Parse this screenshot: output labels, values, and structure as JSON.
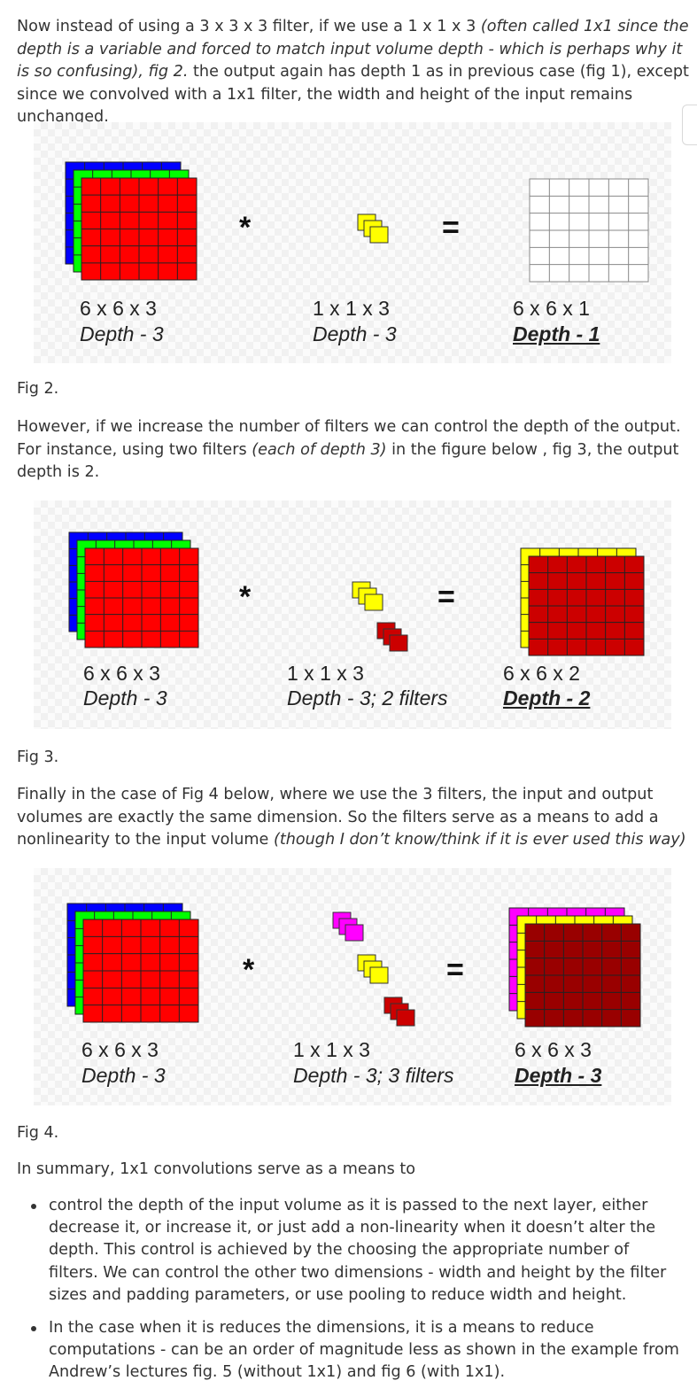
{
  "para1": {
    "segments": [
      {
        "text": "Now instead of using a 3 x 3 x 3 filter, if we use a 1 x 1 x 3 ",
        "italic": false
      },
      {
        "text": "(often called 1x1 since the depth is a variable and forced to match input volume depth - which is perhaps why it is so confusing), fig 2.",
        "italic": true
      },
      {
        "text": " the output again has depth 1 as in previous case (fig 1), except since we convolved with a 1x1 filter, the width and height of the input remains unchanged.",
        "italic": false
      }
    ]
  },
  "fig2": {
    "input_dims": "6 x 6 x 3",
    "input_depth": "Depth - 3",
    "filter_dims": "1 x 1 x 3",
    "filter_depth": "Depth - 3",
    "output_dims": "6 x 6 x 1",
    "output_depth": "Depth - 1",
    "op_conv": "*",
    "op_eq": "=",
    "caption": "Fig 2."
  },
  "para2": {
    "segments": [
      {
        "text": "However, if we increase the number of filters we can control the depth of the output. For instance, using two filters ",
        "italic": false
      },
      {
        "text": "(each of depth 3)",
        "italic": true
      },
      {
        "text": " in the figure below , fig 3, the output depth is 2.",
        "italic": false
      }
    ]
  },
  "fig3": {
    "input_dims": "6 x 6 x 3",
    "input_depth": "Depth - 3",
    "filter_dims": "1 x 1 x 3",
    "filter_depth": "Depth - 3; 2 filters",
    "output_dims": "6 x 6 x 2",
    "output_depth": "Depth - 2",
    "op_conv": "*",
    "op_eq": "=",
    "caption": "Fig 3."
  },
  "para3": {
    "segments": [
      {
        "text": "Finally in the case of Fig 4 below, where we use the 3 filters, the input and output volumes are exactly the same dimension. So the filters serve as a means to add a nonlinearity to the input volume ",
        "italic": false
      },
      {
        "text": "(though I don’t know/think if it is ever used this way)",
        "italic": true
      }
    ]
  },
  "fig4": {
    "input_dims": "6 x 6 x 3",
    "input_depth": "Depth - 3",
    "filter_dims": "1 x 1 x 3",
    "filter_depth": "Depth - 3; 3 filters",
    "output_dims": "6 x 6 x 3",
    "output_depth": "Depth - 3",
    "op_conv": "*",
    "op_eq": "=",
    "caption": "Fig 4."
  },
  "summary": {
    "intro": "In summary, 1x1 convolutions serve as a means to",
    "bullets": [
      "control the depth of the input volume as it is passed to the next layer, either decrease it, or increase it, or just add a non-linearity when it doesn’t alter the depth. This control is achieved by the choosing the appropriate number of filters. We can control the other two dimensions - width and height by the filter sizes and padding parameters, or use pooling to reduce width and height.",
      "In the case when it is reduces the dimensions, it is a means to reduce computations - can be an order of magnitude less as shown in the example from Andrew’s lectures fig. 5 (without 1x1) and fig 6 (with 1x1)."
    ]
  },
  "colors": {
    "text": "#333333",
    "blue": "#0000ff",
    "green": "#00ff00",
    "red": "#ff0000",
    "dark_red": "#cc0000",
    "darker_red": "#990000",
    "yellow": "#ffff00",
    "magenta": "#ff00ff",
    "grid_gray": "#888888"
  }
}
